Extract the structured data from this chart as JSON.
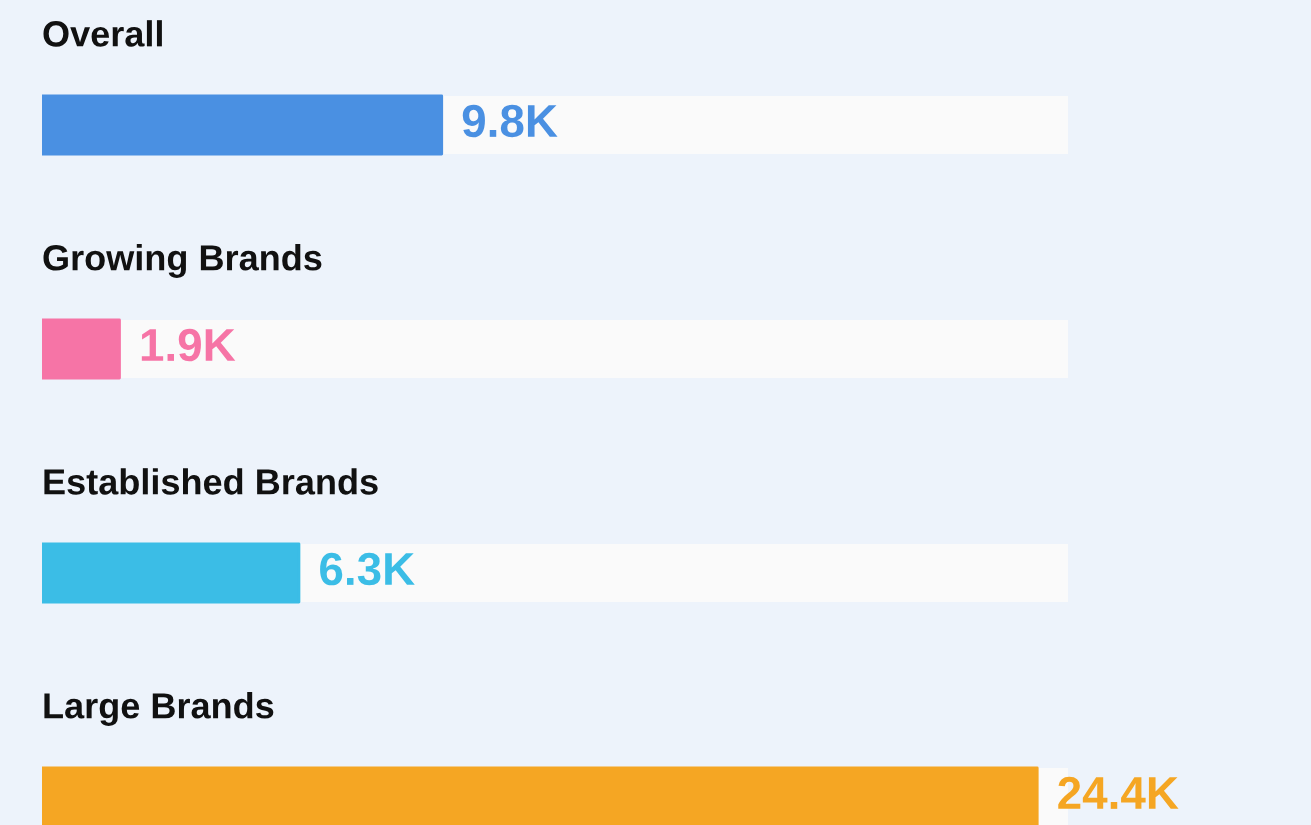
{
  "chart_data": {
    "type": "bar",
    "orientation": "horizontal",
    "categories": [
      "Overall",
      "Growing Brands",
      "Established Brands",
      "Large Brands"
    ],
    "values": [
      9800,
      1900,
      6300,
      24400
    ],
    "colors": [
      "#4a90e2",
      "#f674a6",
      "#3bbde6",
      "#f5a623"
    ],
    "value_labels": [
      "9.8K",
      "1.9K",
      "6.3K",
      "24.4K"
    ],
    "legend": false
  }
}
